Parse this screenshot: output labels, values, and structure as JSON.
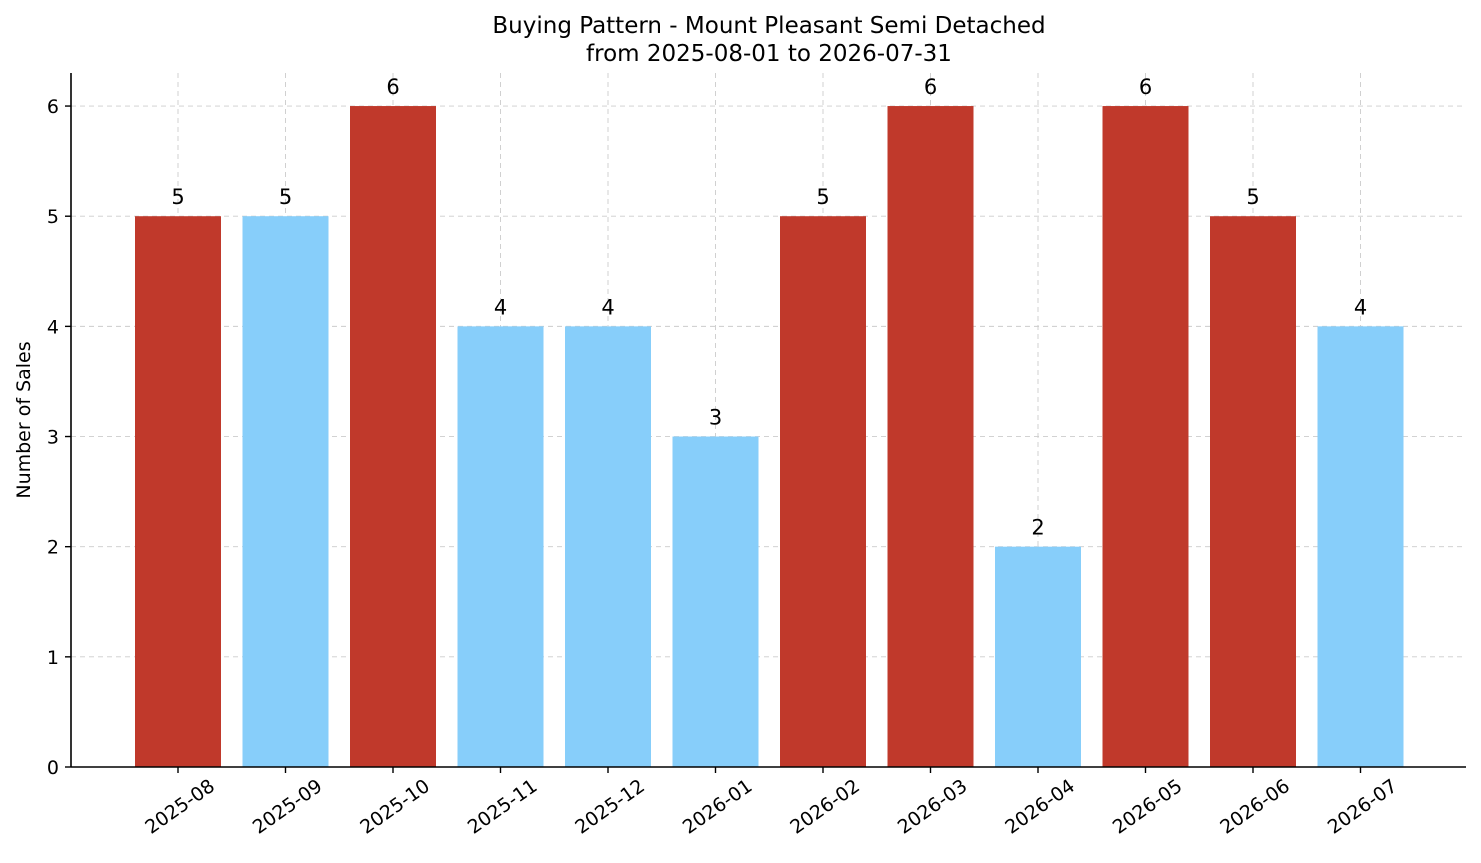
{
  "chart_data": {
    "type": "bar",
    "title": "Buying Pattern - Mount Pleasant Semi Detached",
    "subtitle": "from 2025-08-01 to 2026-07-31",
    "xlabel": "",
    "ylabel": "Number of Sales",
    "ylim": [
      0,
      6.3
    ],
    "yticks": [
      0,
      1,
      2,
      3,
      4,
      5,
      6
    ],
    "grid": true,
    "categories": [
      "2025-08",
      "2025-09",
      "2025-10",
      "2025-11",
      "2025-12",
      "2026-01",
      "2026-02",
      "2026-03",
      "2026-04",
      "2026-05",
      "2026-06",
      "2026-07"
    ],
    "values": [
      5,
      5,
      6,
      4,
      4,
      3,
      5,
      6,
      2,
      6,
      5,
      4
    ],
    "bar_colors": [
      "#c0392b",
      "#87cefa",
      "#c0392b",
      "#87cefa",
      "#87cefa",
      "#87cefa",
      "#c0392b",
      "#c0392b",
      "#87cefa",
      "#c0392b",
      "#c0392b",
      "#87cefa"
    ]
  }
}
